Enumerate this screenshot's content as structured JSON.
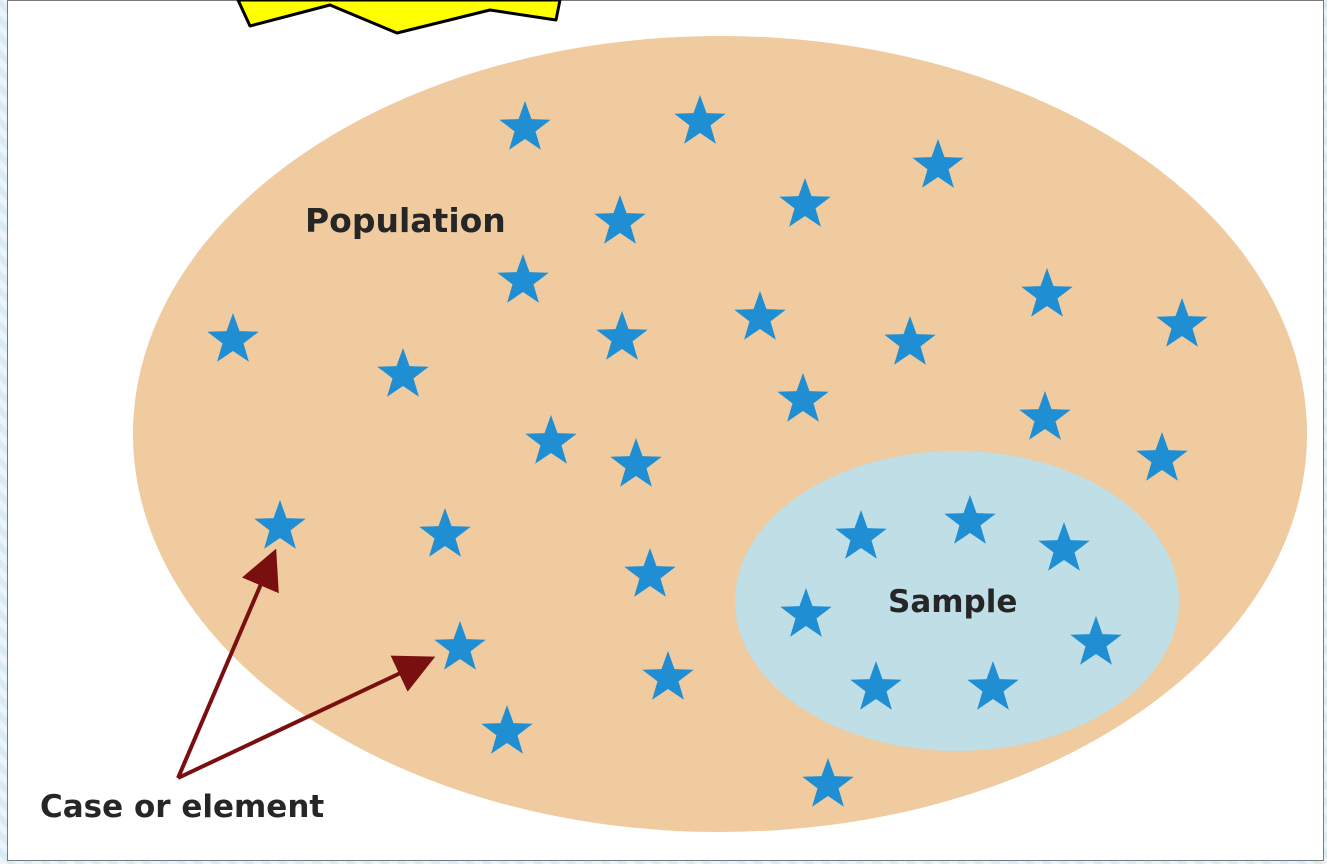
{
  "diagram": {
    "population_label": "Population",
    "sample_label": "Sample",
    "case_label": "Case or element"
  },
  "colors": {
    "population_fill": "#efcb9f",
    "sample_fill": "#bfdee5",
    "star_fill": "#1f8ed3",
    "arrow_color": "#7a0f0f",
    "burst_fill": "#ffff00",
    "page_background": "#dfeef6"
  }
}
